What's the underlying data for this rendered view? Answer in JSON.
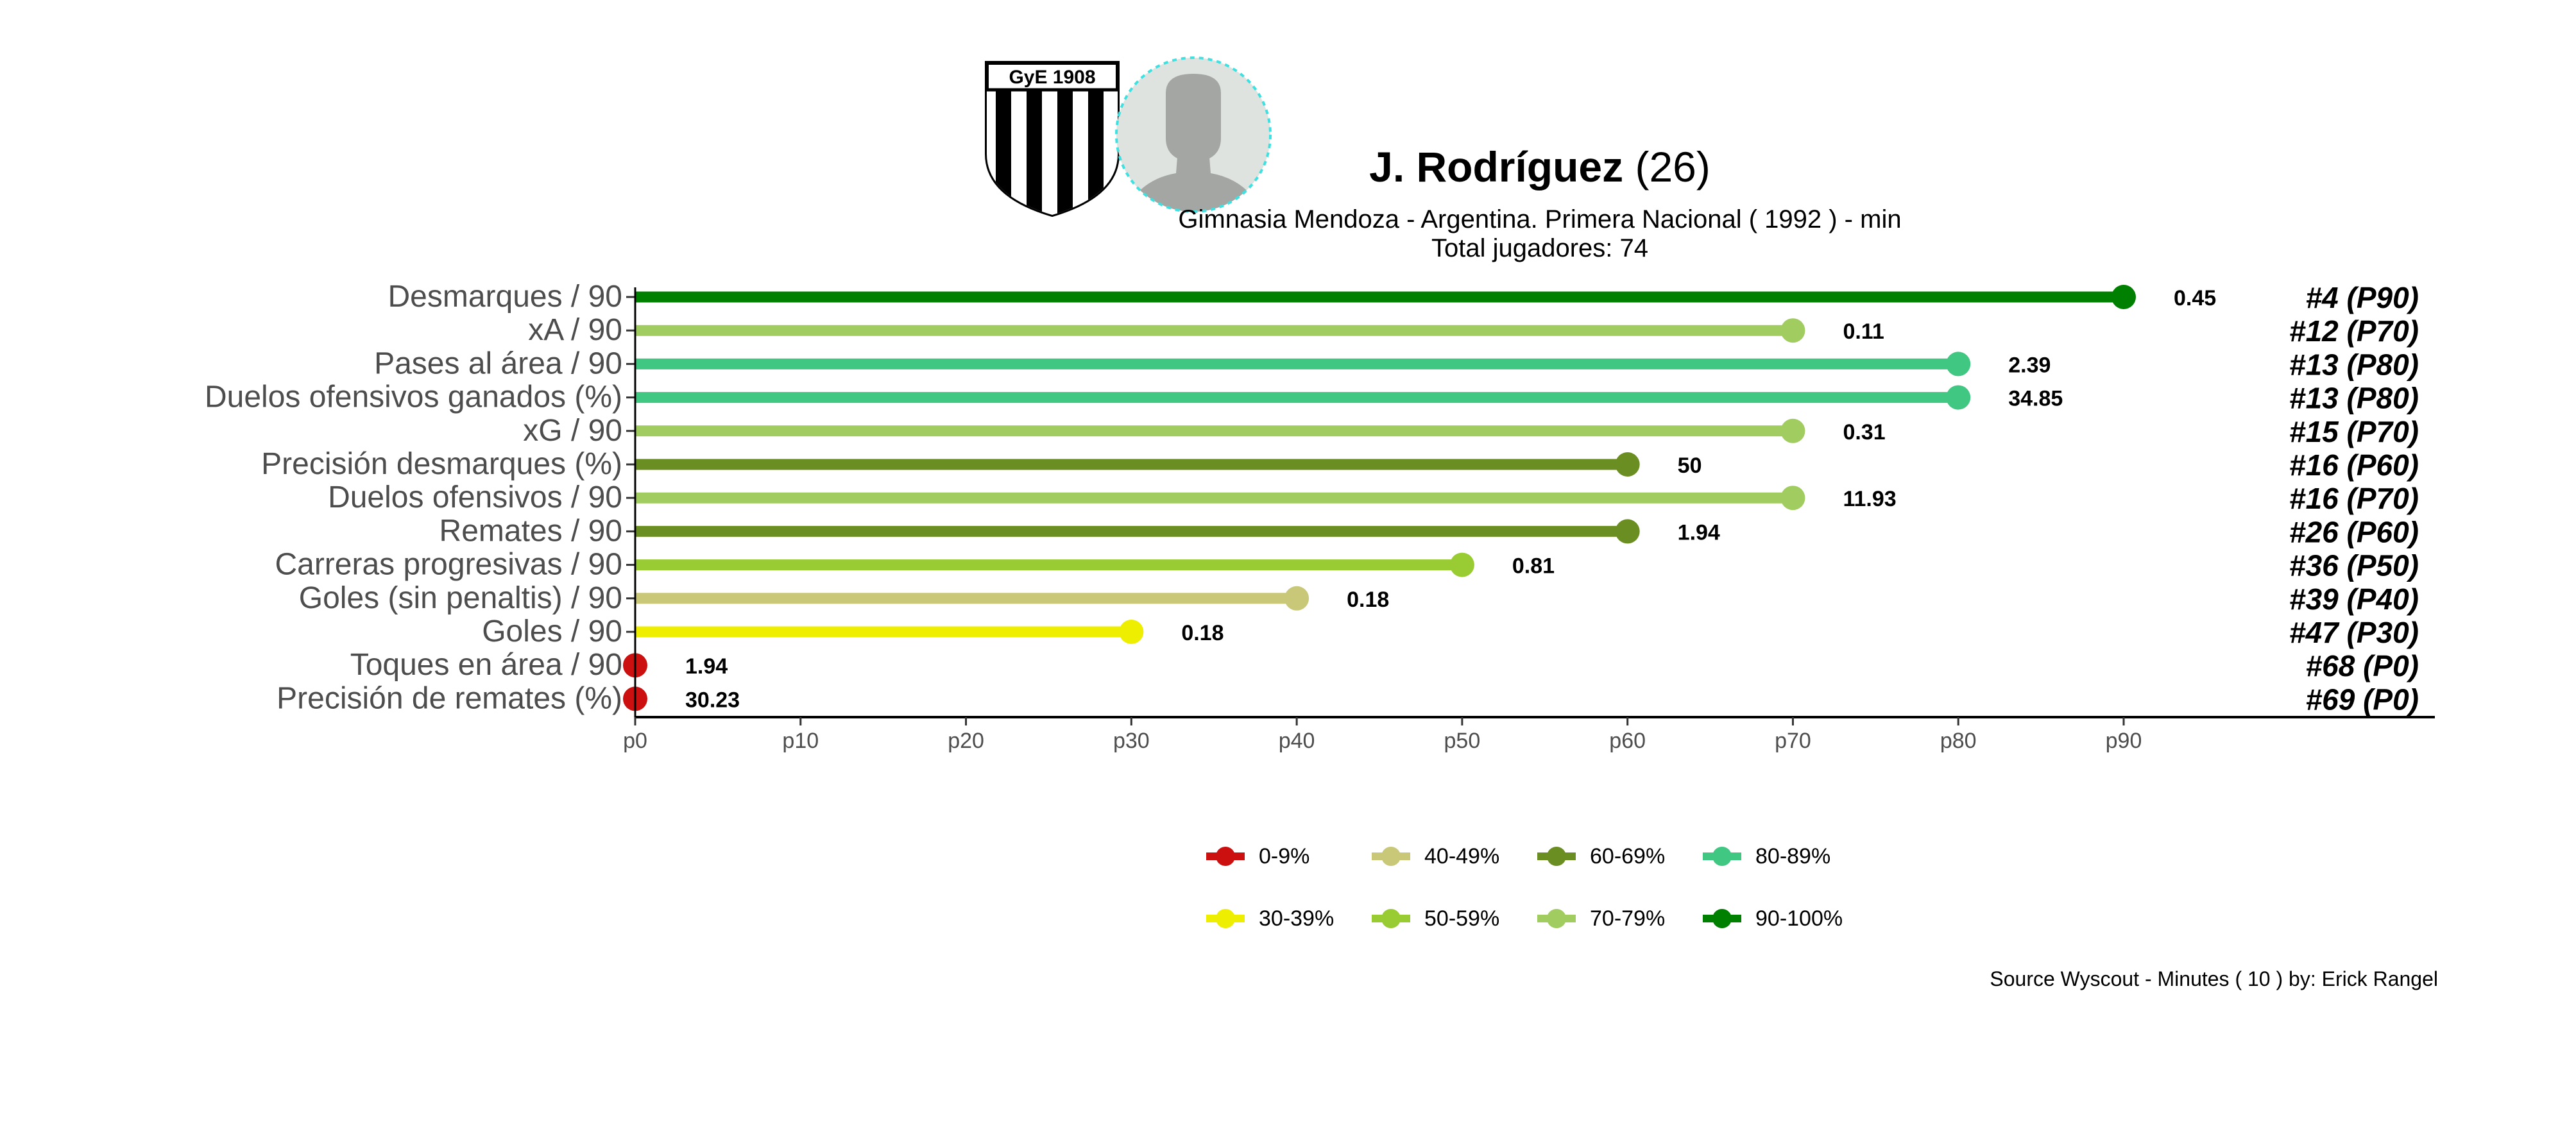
{
  "header": {
    "player_name": "J. Rodríguez",
    "player_age": "(26)",
    "subtitle": "Gimnasia Mendoza  -  Argentina. Primera Nacional  ( 1992 ) - min",
    "total_label": "Total jugadores:  74",
    "club_crest_text": "GyE 1908"
  },
  "chart_data": {
    "type": "lollipop",
    "x_axis": {
      "ticks": [
        "p0",
        "p10",
        "p20",
        "p30",
        "p40",
        "p50",
        "p60",
        "p70",
        "p80",
        "p90"
      ],
      "range": [
        0,
        90
      ]
    },
    "rows": [
      {
        "metric": "Desmarques / 90",
        "percentile": 90,
        "value": "0.45",
        "rank": "#4 (P90)",
        "band": "90-100%"
      },
      {
        "metric": "xA / 90",
        "percentile": 70,
        "value": "0.11",
        "rank": "#12 (P70)",
        "band": "70-79%"
      },
      {
        "metric": "Pases al área / 90",
        "percentile": 80,
        "value": "2.39",
        "rank": "#13 (P80)",
        "band": "80-89%"
      },
      {
        "metric": "Duelos ofensivos ganados (%)",
        "percentile": 80,
        "value": "34.85",
        "rank": "#13 (P80)",
        "band": "80-89%"
      },
      {
        "metric": "xG / 90",
        "percentile": 70,
        "value": "0.31",
        "rank": "#15 (P70)",
        "band": "70-79%"
      },
      {
        "metric": "Precisión desmarques (%)",
        "percentile": 60,
        "value": "50",
        "rank": "#16 (P60)",
        "band": "60-69%"
      },
      {
        "metric": "Duelos ofensivos / 90",
        "percentile": 70,
        "value": "11.93",
        "rank": "#16 (P70)",
        "band": "70-79%"
      },
      {
        "metric": "Remates / 90",
        "percentile": 60,
        "value": "1.94",
        "rank": "#26 (P60)",
        "band": "60-69%"
      },
      {
        "metric": "Carreras progresivas / 90",
        "percentile": 50,
        "value": "0.81",
        "rank": "#36 (P50)",
        "band": "50-59%"
      },
      {
        "metric": "Goles (sin penaltis) / 90",
        "percentile": 40,
        "value": "0.18",
        "rank": "#39 (P40)",
        "band": "40-49%"
      },
      {
        "metric": "Goles / 90",
        "percentile": 30,
        "value": "0.18",
        "rank": "#47 (P30)",
        "band": "30-39%"
      },
      {
        "metric": "Toques en área / 90",
        "percentile": 0,
        "value": "1.94",
        "rank": "#68 (P0)",
        "band": "0-9%"
      },
      {
        "metric": "Precisión de remates (%)",
        "percentile": 0,
        "value": "30.23",
        "rank": "#69 (P0)",
        "band": "0-9%"
      }
    ],
    "legend": [
      {
        "label": "0-9%",
        "color": "#cc1010"
      },
      {
        "label": "30-39%",
        "color": "#eeee00"
      },
      {
        "label": "40-49%",
        "color": "#c8c878"
      },
      {
        "label": "50-59%",
        "color": "#99cc33"
      },
      {
        "label": "60-69%",
        "color": "#6b8e23"
      },
      {
        "label": "70-79%",
        "color": "#a0cc60"
      },
      {
        "label": "80-89%",
        "color": "#40c882"
      },
      {
        "label": "90-100%",
        "color": "#008000"
      }
    ]
  },
  "footer": {
    "source": "Source Wyscout - Minutes ( 10 ) by: Erick Rangel"
  }
}
